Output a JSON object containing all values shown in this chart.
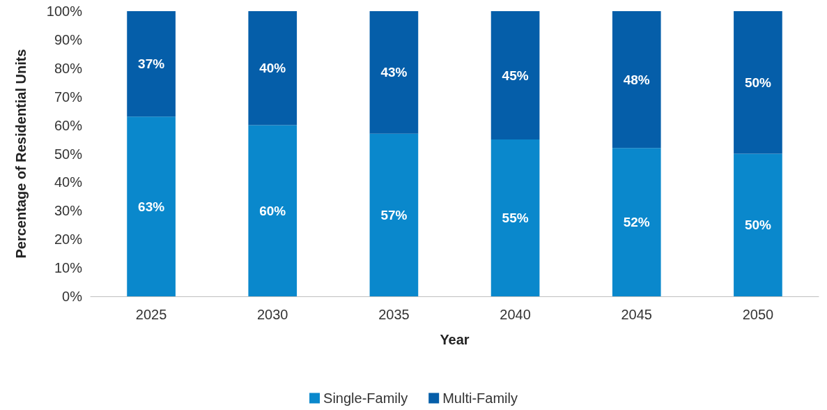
{
  "chart_data": {
    "type": "bar",
    "stacked": true,
    "xlabel": "Year",
    "ylabel": "Percentage of Residential Units",
    "legend": "bottom",
    "categories": [
      "2025",
      "2030",
      "2035",
      "2040",
      "2045",
      "2050"
    ],
    "series": [
      {
        "name": "Single-Family",
        "color": "#0a88cc",
        "values": [
          63,
          60,
          57,
          55,
          52,
          50
        ],
        "value_labels": [
          "63%",
          "60%",
          "57%",
          "55%",
          "52%",
          "50%"
        ]
      },
      {
        "name": "Multi-Family",
        "color": "#055ea9",
        "values": [
          37,
          40,
          43,
          45,
          48,
          50
        ],
        "value_labels": [
          "37%",
          "40%",
          "43%",
          "45%",
          "48%",
          "50%"
        ]
      }
    ],
    "ylim": [
      0,
      100
    ],
    "yticks": [
      {
        "value": 0,
        "label": "0%"
      },
      {
        "value": 10,
        "label": "10%"
      },
      {
        "value": 20,
        "label": "20%"
      },
      {
        "value": 30,
        "label": "30%"
      },
      {
        "value": 40,
        "label": "40%"
      },
      {
        "value": 50,
        "label": "50%"
      },
      {
        "value": 60,
        "label": "60%"
      },
      {
        "value": 70,
        "label": "70%"
      },
      {
        "value": 80,
        "label": "80%"
      },
      {
        "value": 90,
        "label": "90%"
      },
      {
        "value": 100,
        "label": "100%"
      }
    ]
  }
}
